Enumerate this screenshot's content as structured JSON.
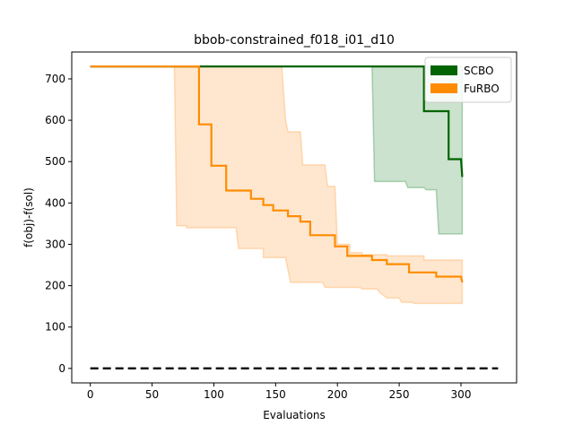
{
  "chart_data": {
    "type": "line",
    "title": "bbob-constrained_f018_i01_d10",
    "xlabel": "Evaluations",
    "ylabel": "f(obj)-f(sol)",
    "xlim": [
      -15,
      345
    ],
    "ylim": [
      -35,
      765
    ],
    "xticks": [
      0,
      50,
      100,
      150,
      200,
      250,
      300
    ],
    "yticks": [
      0,
      100,
      200,
      300,
      400,
      500,
      600,
      700
    ],
    "legend_position": "top-right",
    "grid": false,
    "series": [
      {
        "name": "SCBO",
        "color": "#006400",
        "fill_color": "#2e8b3a",
        "median": [
          [
            0,
            730
          ],
          [
            270,
            730
          ],
          [
            270,
            622
          ],
          [
            290,
            622
          ],
          [
            290,
            506
          ],
          [
            300,
            506
          ],
          [
            301,
            463
          ]
        ],
        "upper": [
          [
            0,
            730
          ],
          [
            301,
            730
          ]
        ],
        "lower": [
          [
            0,
            730
          ],
          [
            228,
            730
          ],
          [
            230,
            452
          ],
          [
            255,
            452
          ],
          [
            257,
            437
          ],
          [
            270,
            437
          ],
          [
            272,
            432
          ],
          [
            280,
            432
          ],
          [
            282,
            325
          ],
          [
            301,
            325
          ]
        ]
      },
      {
        "name": "FuRBO",
        "color": "#ff8c00",
        "fill_color": "#ffa040",
        "median": [
          [
            0,
            730
          ],
          [
            88,
            730
          ],
          [
            88,
            590
          ],
          [
            98,
            590
          ],
          [
            98,
            490
          ],
          [
            110,
            490
          ],
          [
            110,
            430
          ],
          [
            130,
            430
          ],
          [
            130,
            410
          ],
          [
            140,
            410
          ],
          [
            140,
            395
          ],
          [
            148,
            395
          ],
          [
            148,
            382
          ],
          [
            160,
            382
          ],
          [
            160,
            368
          ],
          [
            170,
            368
          ],
          [
            170,
            355
          ],
          [
            178,
            355
          ],
          [
            178,
            322
          ],
          [
            198,
            322
          ],
          [
            198,
            295
          ],
          [
            208,
            295
          ],
          [
            208,
            272
          ],
          [
            228,
            272
          ],
          [
            228,
            262
          ],
          [
            240,
            262
          ],
          [
            240,
            252
          ],
          [
            258,
            252
          ],
          [
            258,
            232
          ],
          [
            280,
            232
          ],
          [
            280,
            222
          ],
          [
            300,
            222
          ],
          [
            301,
            208
          ]
        ],
        "upper": [
          [
            0,
            730
          ],
          [
            155,
            730
          ],
          [
            158,
            600
          ],
          [
            160,
            572
          ],
          [
            170,
            572
          ],
          [
            172,
            492
          ],
          [
            190,
            492
          ],
          [
            192,
            440
          ],
          [
            198,
            440
          ],
          [
            200,
            300
          ],
          [
            210,
            300
          ],
          [
            210,
            280
          ],
          [
            220,
            280
          ],
          [
            220,
            275
          ],
          [
            240,
            275
          ],
          [
            240,
            272
          ],
          [
            270,
            272
          ],
          [
            270,
            262
          ],
          [
            301,
            262
          ]
        ],
        "lower": [
          [
            0,
            730
          ],
          [
            68,
            730
          ],
          [
            70,
            345
          ],
          [
            78,
            345
          ],
          [
            78,
            340
          ],
          [
            118,
            340
          ],
          [
            120,
            290
          ],
          [
            140,
            290
          ],
          [
            140,
            268
          ],
          [
            158,
            268
          ],
          [
            160,
            238
          ],
          [
            162,
            208
          ],
          [
            188,
            208
          ],
          [
            190,
            196
          ],
          [
            218,
            196
          ],
          [
            220,
            192
          ],
          [
            232,
            192
          ],
          [
            235,
            182
          ],
          [
            240,
            170
          ],
          [
            250,
            170
          ],
          [
            252,
            160
          ],
          [
            260,
            160
          ],
          [
            262,
            157
          ],
          [
            301,
            157
          ]
        ]
      }
    ],
    "reference_line": {
      "y": 0,
      "x_range": [
        0,
        330
      ],
      "color": "#000000",
      "style": "dashed"
    }
  }
}
